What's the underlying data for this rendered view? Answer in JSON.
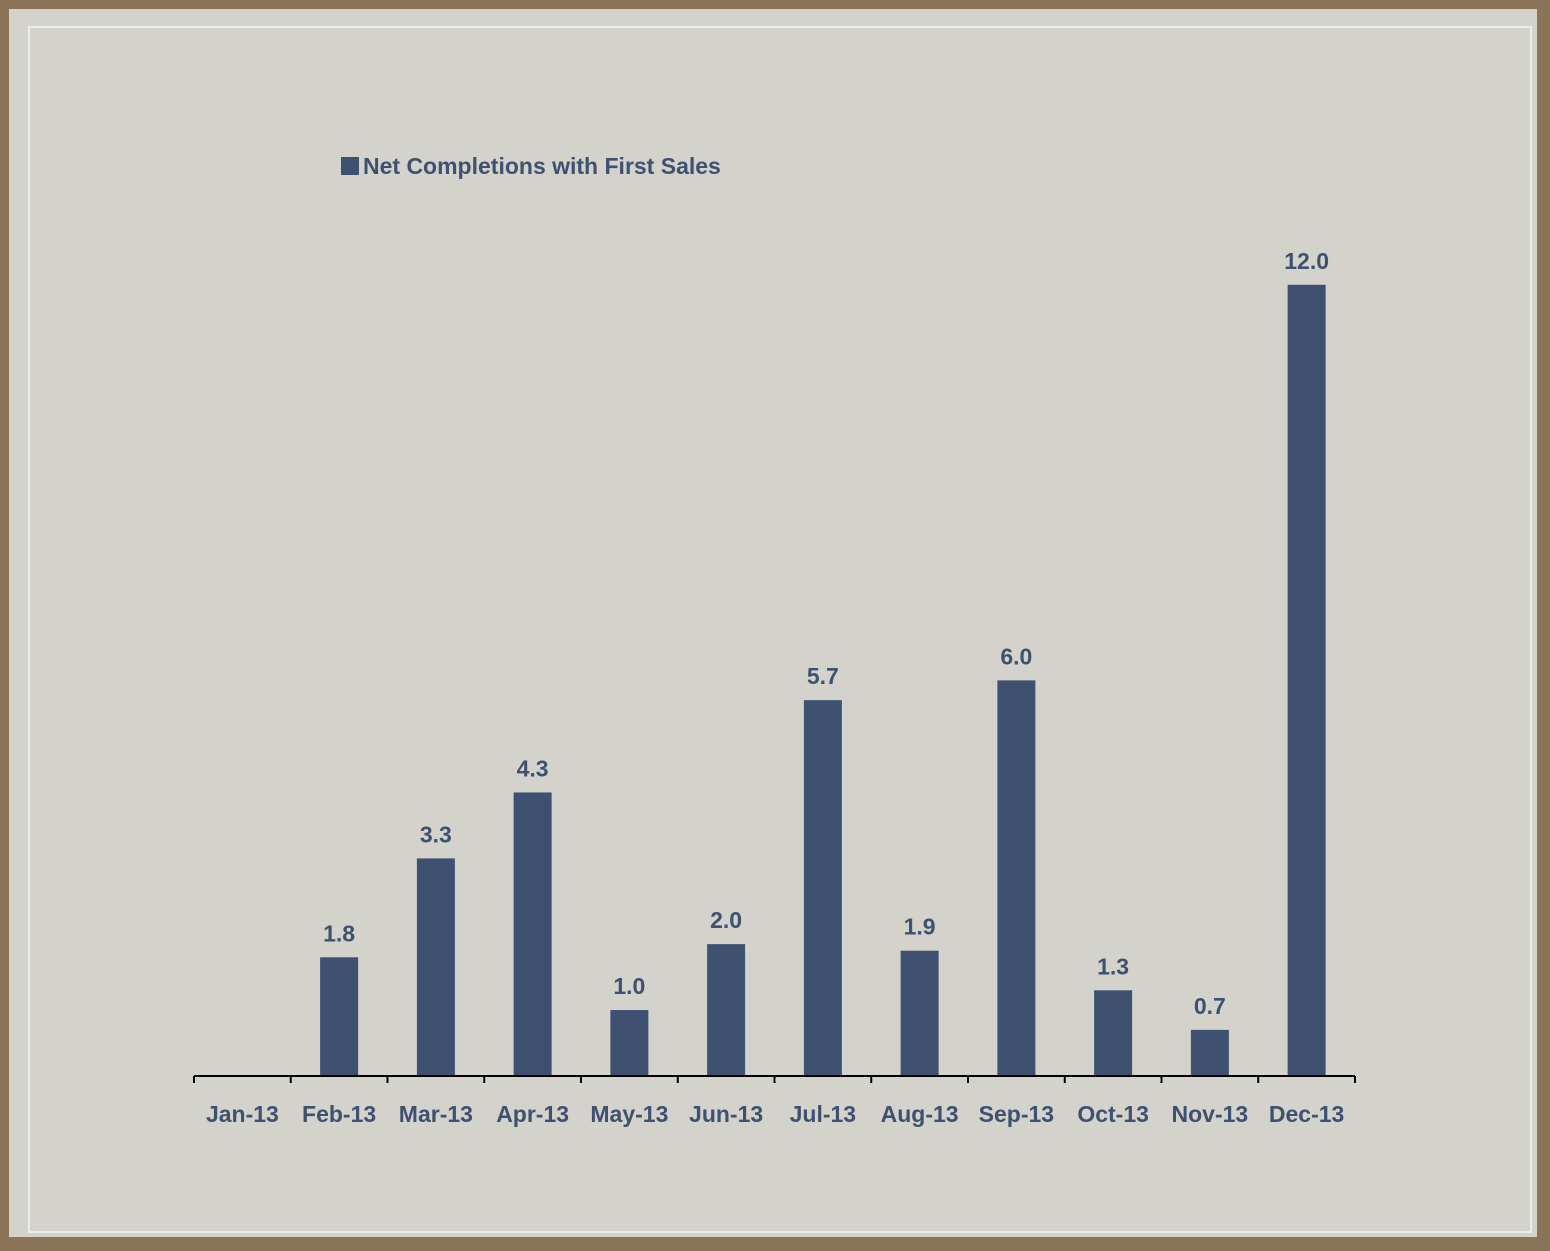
{
  "chart_data": {
    "type": "bar",
    "title": "",
    "xlabel": "",
    "ylabel": "",
    "legend": {
      "position": "top-left",
      "entries": [
        "Net Completions with First Sales"
      ]
    },
    "categories": [
      "Jan-13",
      "Feb-13",
      "Mar-13",
      "Apr-13",
      "May-13",
      "Jun-13",
      "Jul-13",
      "Aug-13",
      "Sep-13",
      "Oct-13",
      "Nov-13",
      "Dec-13"
    ],
    "series": [
      {
        "name": "Net Completions with First Sales",
        "values": [
          0,
          1.8,
          3.3,
          4.3,
          1.0,
          2.0,
          5.7,
          1.9,
          6.0,
          1.3,
          0.7,
          12.0
        ],
        "labels": [
          "",
          "1.8",
          "3.3",
          "4.3",
          "1.0",
          "2.0",
          "5.7",
          "1.9",
          "6.0",
          "1.3",
          "0.7",
          "12.0"
        ],
        "color": "#3e5170"
      }
    ],
    "ylim": [
      0,
      12.8
    ],
    "grid": false,
    "colors": {
      "bar": "#3e5170",
      "text": "#3e5170",
      "axis": "#000000",
      "background": "#d3d3cc",
      "frame": "#8b7558"
    }
  }
}
